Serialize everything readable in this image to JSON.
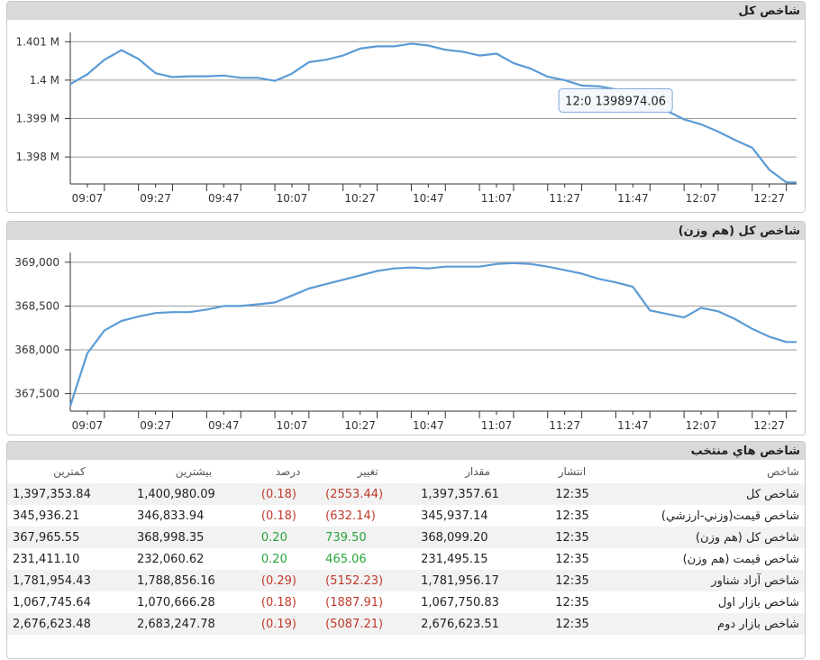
{
  "colors": {
    "line": "#5b9bd5",
    "negative": "#c0392b",
    "positive": "#27a33a",
    "header_bg": "#d9d9d9"
  },
  "panels": {
    "total_title": "شاخص کل",
    "equal_title": "شاخص کل (هم وزن)",
    "table_title": "شاخص هاي منتخب"
  },
  "chart_data": [
    {
      "type": "line",
      "title": "شاخص کل",
      "x_ticks": [
        "09:07",
        "09:27",
        "09:47",
        "10:07",
        "10:27",
        "10:47",
        "11:07",
        "11:27",
        "11:47",
        "12:07",
        "12:27"
      ],
      "y_ticks": [
        "1.398 M",
        "1.399 M",
        "1.4 M",
        "1.401 M"
      ],
      "y_tick_values": [
        1398000,
        1399000,
        1400000,
        1401000
      ],
      "ylim": [
        1397300,
        1401100
      ],
      "x_unit": "minute",
      "x_range": [
        "09:02",
        "12:35"
      ],
      "tooltip": "12:0 1398974.06",
      "series": [
        {
          "x": [
            "09:02",
            "09:07",
            "09:12",
            "09:17",
            "09:22",
            "09:27",
            "09:32",
            "09:37",
            "09:42",
            "09:47",
            "09:52",
            "09:57",
            "10:02",
            "10:07",
            "10:12",
            "10:17",
            "10:22",
            "10:27",
            "10:32",
            "10:37",
            "10:42",
            "10:47",
            "10:52",
            "10:57",
            "11:02",
            "11:07",
            "11:12",
            "11:17",
            "11:22",
            "11:27",
            "11:32",
            "11:37",
            "11:42",
            "11:47",
            "11:52",
            "11:57",
            "12:02",
            "12:07",
            "12:12",
            "12:17",
            "12:22",
            "12:27",
            "12:32",
            "12:35"
          ],
          "values": [
            1399900,
            1400150,
            1400530,
            1400780,
            1400550,
            1400180,
            1400080,
            1400100,
            1400100,
            1400120,
            1400060,
            1400060,
            1399980,
            1400170,
            1400470,
            1400530,
            1400640,
            1400820,
            1400880,
            1400880,
            1400950,
            1400900,
            1400790,
            1400740,
            1400640,
            1400690,
            1400440,
            1400300,
            1400090,
            1400000,
            1399860,
            1399840,
            1399760,
            1399600,
            1399370,
            1399200,
            1398980,
            1398850,
            1398660,
            1398440,
            1398240,
            1397670,
            1397340,
            1397340
          ]
        }
      ]
    },
    {
      "type": "line",
      "title": "شاخص کل (هم وزن)",
      "x_ticks": [
        "09:07",
        "09:27",
        "09:47",
        "10:07",
        "10:27",
        "10:47",
        "11:07",
        "11:27",
        "11:47",
        "12:07",
        "12:27"
      ],
      "y_ticks": [
        "367,500",
        "368,000",
        "368,500",
        "369,000"
      ],
      "y_tick_values": [
        367500,
        368000,
        368500,
        369000
      ],
      "ylim": [
        367300,
        369050
      ],
      "x_unit": "minute",
      "x_range": [
        "09:02",
        "12:35"
      ],
      "series": [
        {
          "x": [
            "09:02",
            "09:07",
            "09:12",
            "09:17",
            "09:22",
            "09:27",
            "09:32",
            "09:37",
            "09:42",
            "09:47",
            "09:52",
            "09:57",
            "10:02",
            "10:07",
            "10:12",
            "10:17",
            "10:22",
            "10:27",
            "10:32",
            "10:37",
            "10:42",
            "10:47",
            "10:52",
            "10:57",
            "11:02",
            "11:07",
            "11:12",
            "11:17",
            "11:22",
            "11:27",
            "11:32",
            "11:37",
            "11:42",
            "11:47",
            "11:52",
            "11:57",
            "12:02",
            "12:07",
            "12:12",
            "12:17",
            "12:22",
            "12:27",
            "12:32",
            "12:35"
          ],
          "values": [
            367360,
            367960,
            368220,
            368330,
            368380,
            368420,
            368430,
            368430,
            368460,
            368500,
            368500,
            368520,
            368540,
            368620,
            368700,
            368750,
            368800,
            368850,
            368900,
            368930,
            368940,
            368930,
            368950,
            368950,
            368950,
            368980,
            368990,
            368980,
            368950,
            368910,
            368870,
            368810,
            368770,
            368720,
            368450,
            368410,
            368370,
            368480,
            368440,
            368350,
            368240,
            368150,
            368090,
            368090
          ]
        }
      ]
    }
  ],
  "table": {
    "headers": {
      "name": "شاخص",
      "time": "انتشار",
      "value": "مقدار",
      "change": "تغيير",
      "percent": "درصد",
      "high": "بيشترين",
      "low": "کمترين"
    },
    "rows": [
      {
        "name": "شاخص کل",
        "time": "12:35",
        "value": "1,397,357.61",
        "change": "(2553.44)",
        "percent": "(0.18)",
        "high": "1,400,980.09",
        "low": "1,397,353.84",
        "dir": "neg"
      },
      {
        "name": "شاخص قيمت(وزني-ارزشي)",
        "time": "12:35",
        "value": "345,937.14",
        "change": "(632.14)",
        "percent": "(0.18)",
        "high": "346,833.94",
        "low": "345,936.21",
        "dir": "neg"
      },
      {
        "name": "شاخص کل (هم وزن)",
        "time": "12:35",
        "value": "368,099.20",
        "change": "739.50",
        "percent": "0.20",
        "high": "368,998.35",
        "low": "367,965.55",
        "dir": "pos"
      },
      {
        "name": "شاخص قيمت (هم وزن)",
        "time": "12:35",
        "value": "231,495.15",
        "change": "465.06",
        "percent": "0.20",
        "high": "232,060.62",
        "low": "231,411.10",
        "dir": "pos"
      },
      {
        "name": "شاخص آزاد شناور",
        "time": "12:35",
        "value": "1,781,956.17",
        "change": "(5152.23)",
        "percent": "(0.29)",
        "high": "1,788,856.16",
        "low": "1,781,954.43",
        "dir": "neg"
      },
      {
        "name": "شاخص بازار اول",
        "time": "12:35",
        "value": "1,067,750.83",
        "change": "(1887.91)",
        "percent": "(0.18)",
        "high": "1,070,666.28",
        "low": "1,067,745.64",
        "dir": "neg"
      },
      {
        "name": "شاخص بازار دوم",
        "time": "12:35",
        "value": "2,676,623.51",
        "change": "(5087.21)",
        "percent": "(0.19)",
        "high": "2,683,247.78",
        "low": "2,676,623.48",
        "dir": "neg"
      }
    ]
  }
}
